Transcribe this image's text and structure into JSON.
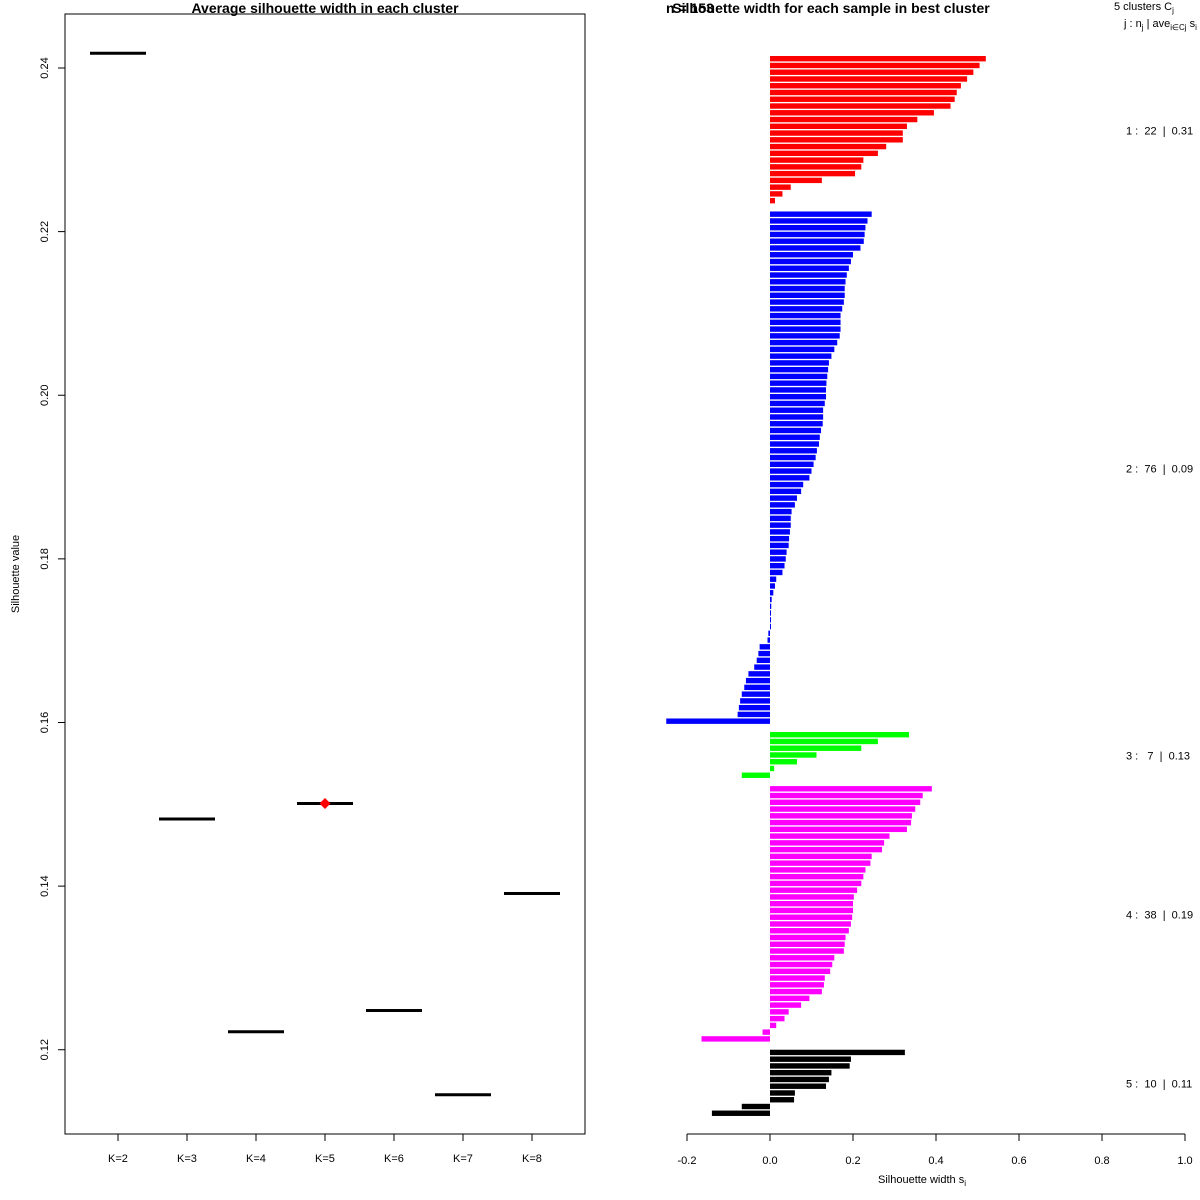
{
  "colors": {
    "c1": "#ff0000",
    "c2": "#0000ff",
    "c3": "#00ff00",
    "c4": "#ff00ff",
    "c5": "#000000",
    "best_marker": "#ff0000"
  },
  "chart_data": [
    {
      "type": "scatter",
      "title": "Average silhouette width in each cluster",
      "xlabel": "",
      "ylabel": "Silhouette value",
      "categories": [
        "K=2",
        "K=3",
        "K=4",
        "K=5",
        "K=6",
        "K=7",
        "K=8"
      ],
      "values": [
        0.2418,
        0.1482,
        0.1222,
        0.1501,
        0.1248,
        0.1145,
        0.1391
      ],
      "best_index": 3,
      "ylim": [
        0.1097,
        0.2466
      ],
      "yticks": [
        0.12,
        0.14,
        0.16,
        0.18,
        0.2,
        0.22,
        0.24
      ],
      "ytick_labels": [
        "0.12",
        "0.14",
        "0.16",
        "0.18",
        "0.20",
        "0.22",
        "0.24"
      ]
    },
    {
      "type": "bar",
      "title": "Silhouette width for each sample in best cluster",
      "overlap_text": "n = 153",
      "xlabel": "Silhouette width s",
      "xlabel_sub": "i",
      "xlim": [
        -0.25,
        1.0
      ],
      "xticks": [
        -0.2,
        0.0,
        0.2,
        0.4,
        0.6,
        0.8,
        1.0
      ],
      "xtick_labels": [
        "-0.2",
        "0.0",
        "0.2",
        "0.4",
        "0.6",
        "0.8",
        "1.0"
      ],
      "legend_title": "5 clusters C",
      "legend_title_sub": "j",
      "legend_header": "j : n",
      "legend_header_sub": "j",
      "legend_header2": " | ave",
      "legend_header_sub2": "i∈Cj",
      "legend_header3": " s",
      "legend_header_sub3": "i",
      "clusters": [
        {
          "label": "1 :  22  |  0.31",
          "color_key": "c1",
          "values": [
            0.52,
            0.505,
            0.49,
            0.475,
            0.46,
            0.45,
            0.445,
            0.435,
            0.395,
            0.355,
            0.33,
            0.32,
            0.32,
            0.28,
            0.26,
            0.225,
            0.22,
            0.205,
            0.125,
            0.05,
            0.03,
            0.012
          ]
        },
        {
          "label": "2 :  76  |  0.09",
          "color_key": "c2",
          "values": [
            0.245,
            0.235,
            0.23,
            0.228,
            0.226,
            0.218,
            0.2,
            0.195,
            0.19,
            0.185,
            0.182,
            0.18,
            0.18,
            0.178,
            0.174,
            0.17,
            0.17,
            0.17,
            0.168,
            0.162,
            0.155,
            0.148,
            0.142,
            0.14,
            0.138,
            0.136,
            0.135,
            0.135,
            0.132,
            0.128,
            0.128,
            0.127,
            0.123,
            0.12,
            0.118,
            0.113,
            0.11,
            0.105,
            0.1,
            0.095,
            0.08,
            0.075,
            0.065,
            0.06,
            0.052,
            0.05,
            0.05,
            0.048,
            0.046,
            0.045,
            0.04,
            0.038,
            0.035,
            0.03,
            0.015,
            0.012,
            0.008,
            0.004,
            0.003,
            0.001,
            0.0,
            0.0,
            -0.004,
            -0.006,
            -0.025,
            -0.028,
            -0.032,
            -0.038,
            -0.052,
            -0.058,
            -0.062,
            -0.068,
            -0.072,
            -0.075,
            -0.078,
            -0.25
          ]
        },
        {
          "label": "3 :   7  |  0.13",
          "color_key": "c3",
          "values": [
            0.335,
            0.26,
            0.22,
            0.112,
            0.065,
            0.01,
            -0.068
          ]
        },
        {
          "label": "4 :  38  |  0.19",
          "color_key": "c4",
          "values": [
            0.39,
            0.368,
            0.362,
            0.35,
            0.342,
            0.34,
            0.33,
            0.288,
            0.275,
            0.27,
            0.245,
            0.242,
            0.23,
            0.225,
            0.22,
            0.21,
            0.202,
            0.2,
            0.2,
            0.198,
            0.195,
            0.19,
            0.182,
            0.18,
            0.178,
            0.155,
            0.15,
            0.145,
            0.132,
            0.13,
            0.125,
            0.095,
            0.075,
            0.045,
            0.035,
            0.015,
            -0.018,
            -0.165
          ]
        },
        {
          "label": "5 :  10  |  0.11",
          "color_key": "c5",
          "values": [
            0.325,
            0.195,
            0.192,
            0.148,
            0.142,
            0.135,
            0.06,
            0.058,
            -0.068,
            -0.14
          ]
        }
      ]
    }
  ]
}
